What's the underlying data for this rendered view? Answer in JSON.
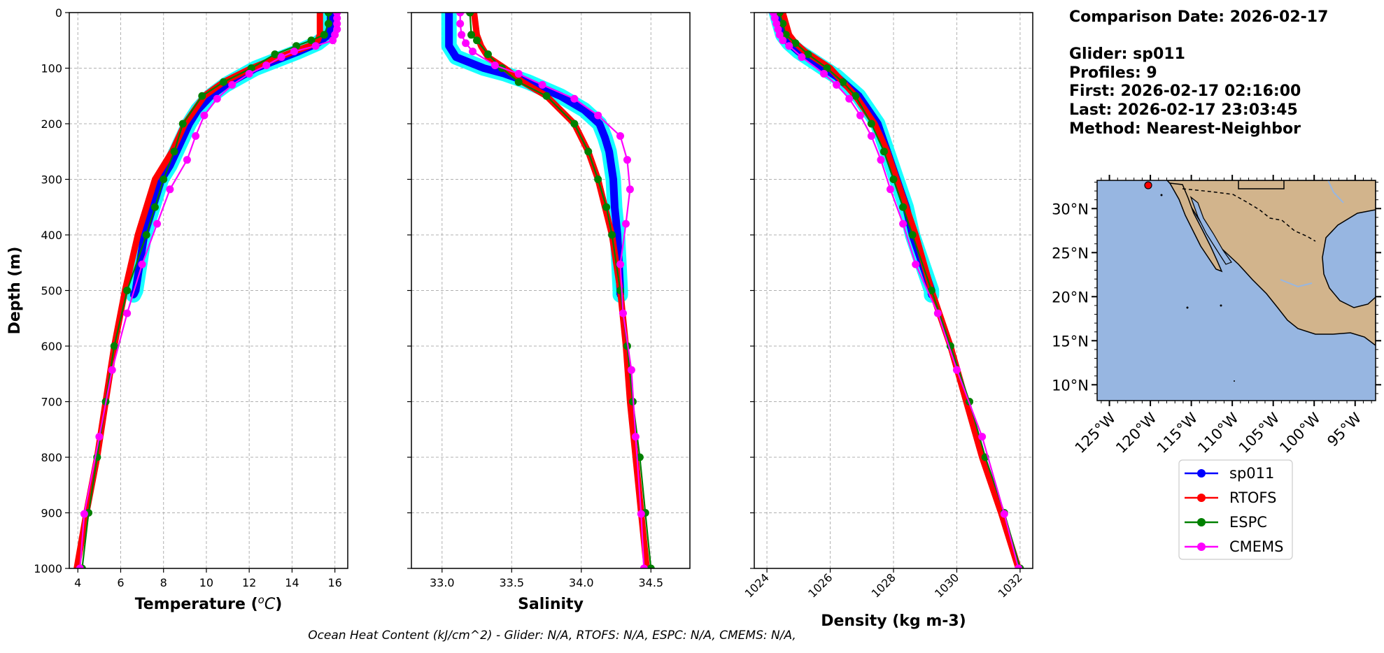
{
  "info": {
    "comparison_date": "Comparison Date: 2026-02-17",
    "glider": "Glider: sp011",
    "profiles": "Profiles: 9",
    "first": "First: 2026-02-17 02:16:00",
    "last": "Last: 2026-02-17 23:03:45",
    "method": "Method: Nearest-Neighbor"
  },
  "footer": "Ocean Heat Content (kJ/cm^2) - Glider: N/A,  RTOFS: N/A,  ESPC: N/A,  CMEMS: N/A,",
  "colors": {
    "sp011": "#0000ff",
    "sp011_spread": "#00ffff",
    "RTOFS": "#ff0000",
    "ESPC": "#008000",
    "CMEMS": "#ff00ff",
    "ocean": "#97b6e1",
    "land": "#d2b48c"
  },
  "legend": [
    "sp011",
    "RTOFS",
    "ESPC",
    "CMEMS"
  ],
  "chart_data": [
    {
      "type": "line",
      "xlabel": "Temperature ($^oC$)",
      "ylabel": "Depth (m)",
      "xlim": [
        3.6,
        16.6
      ],
      "ylim": [
        1000,
        0
      ],
      "xticks": [
        4,
        6,
        8,
        10,
        12,
        14,
        16
      ],
      "yticks": [
        0,
        100,
        200,
        300,
        400,
        500,
        600,
        700,
        800,
        900,
        1000
      ],
      "grid": true,
      "series": [
        {
          "name": "sp011",
          "depth": [
            0,
            20,
            40,
            55,
            70,
            85,
            100,
            115,
            130,
            150,
            175,
            200,
            225,
            250,
            275,
            300,
            350,
            400,
            450,
            500,
            508
          ],
          "values": [
            15.8,
            15.8,
            15.7,
            15.2,
            14.3,
            13.3,
            12.3,
            11.6,
            10.9,
            10.2,
            9.6,
            9.2,
            8.9,
            8.6,
            8.3,
            7.9,
            7.5,
            7.1,
            6.9,
            6.7,
            6.6
          ]
        },
        {
          "name": "RTOFS",
          "depth": [
            0,
            20,
            40,
            50,
            60,
            80,
            100,
            125,
            150,
            200,
            250,
            300,
            400,
            500,
            600,
            700,
            800,
            900,
            1000
          ],
          "values": [
            15.3,
            15.3,
            15.3,
            15.2,
            14.8,
            13.4,
            12.1,
            10.8,
            9.9,
            9.0,
            8.4,
            7.6,
            6.8,
            6.2,
            5.7,
            5.3,
            4.9,
            4.4,
            3.95
          ]
        },
        {
          "name": "ESPC",
          "depth": [
            0,
            20,
            40,
            50,
            60,
            75,
            100,
            125,
            150,
            200,
            250,
            300,
            350,
            400,
            500,
            600,
            700,
            800,
            900,
            1000
          ],
          "values": [
            15.7,
            15.7,
            15.5,
            14.9,
            14.2,
            13.2,
            12.1,
            10.8,
            9.8,
            8.9,
            8.5,
            8.0,
            7.6,
            7.2,
            6.3,
            5.7,
            5.3,
            4.9,
            4.5,
            4.2
          ]
        },
        {
          "name": "CMEMS",
          "depth": [
            0,
            10,
            20,
            30,
            40,
            50,
            60,
            70,
            80,
            95,
            110,
            130,
            155,
            185,
            222,
            265,
            318,
            380,
            453,
            541,
            643,
            763,
            902,
            1000
          ],
          "values": [
            16.1,
            16.1,
            16.1,
            16.1,
            16.0,
            15.9,
            15.1,
            14.1,
            13.5,
            12.8,
            12.0,
            11.2,
            10.5,
            9.9,
            9.5,
            9.1,
            8.3,
            7.7,
            7.0,
            6.3,
            5.6,
            5.0,
            4.3,
            4.1
          ]
        }
      ]
    },
    {
      "type": "line",
      "xlabel": "Salinity",
      "xlim": [
        32.78,
        34.78
      ],
      "ylim": [
        1000,
        0
      ],
      "xticks": [
        33.0,
        33.5,
        34.0,
        34.5
      ],
      "yticks": [
        0,
        100,
        200,
        300,
        400,
        500,
        600,
        700,
        800,
        900,
        1000
      ],
      "grid": true,
      "series": [
        {
          "name": "sp011",
          "depth": [
            0,
            30,
            60,
            80,
            100,
            110,
            125,
            150,
            175,
            200,
            225,
            250,
            300,
            350,
            400,
            450,
            500,
            508
          ],
          "values": [
            33.05,
            33.05,
            33.05,
            33.1,
            33.3,
            33.45,
            33.62,
            33.85,
            34.02,
            34.13,
            34.17,
            34.2,
            34.23,
            34.24,
            34.26,
            34.27,
            34.28,
            34.28
          ]
        },
        {
          "name": "RTOFS",
          "depth": [
            0,
            40,
            60,
            80,
            100,
            125,
            150,
            200,
            250,
            300,
            400,
            500,
            600,
            700,
            800,
            900,
            1000
          ],
          "values": [
            33.23,
            33.25,
            33.28,
            33.33,
            33.45,
            33.58,
            33.75,
            33.95,
            34.05,
            34.12,
            34.22,
            34.28,
            34.32,
            34.35,
            34.39,
            34.43,
            34.47
          ]
        },
        {
          "name": "ESPC",
          "depth": [
            0,
            40,
            50,
            75,
            100,
            125,
            150,
            200,
            250,
            300,
            350,
            400,
            500,
            600,
            700,
            800,
            900,
            1000
          ],
          "values": [
            33.2,
            33.21,
            33.25,
            33.33,
            33.43,
            33.55,
            33.75,
            33.95,
            34.05,
            34.12,
            34.18,
            34.22,
            34.28,
            34.33,
            34.37,
            34.42,
            34.46,
            34.5
          ]
        },
        {
          "name": "CMEMS",
          "depth": [
            0,
            20,
            40,
            55,
            70,
            95,
            110,
            130,
            155,
            185,
            222,
            265,
            318,
            380,
            453,
            541,
            643,
            763,
            902,
            1000
          ],
          "values": [
            33.13,
            33.13,
            33.14,
            33.17,
            33.22,
            33.38,
            33.55,
            33.72,
            33.95,
            34.12,
            34.28,
            34.33,
            34.35,
            34.32,
            34.28,
            34.3,
            34.36,
            34.39,
            34.43,
            34.45
          ]
        }
      ]
    },
    {
      "type": "line",
      "xlabel": "Density (kg m-3)",
      "xlim": [
        1023.6,
        1032.4
      ],
      "ylim": [
        1000,
        0
      ],
      "xticks": [
        1024,
        1026,
        1028,
        1030,
        1032
      ],
      "yticks": [
        0,
        100,
        200,
        300,
        400,
        500,
        600,
        700,
        800,
        900,
        1000
      ],
      "grid": true,
      "series": [
        {
          "name": "sp011",
          "depth": [
            0,
            20,
            40,
            55,
            70,
            85,
            100,
            115,
            130,
            150,
            175,
            200,
            250,
            300,
            350,
            400,
            450,
            500,
            508
          ],
          "values": [
            1024.3,
            1024.4,
            1024.5,
            1024.7,
            1025.0,
            1025.4,
            1025.8,
            1026.2,
            1026.5,
            1026.9,
            1027.2,
            1027.5,
            1027.8,
            1028.1,
            1028.4,
            1028.6,
            1028.9,
            1029.2,
            1029.2
          ]
        },
        {
          "name": "RTOFS",
          "depth": [
            0,
            20,
            40,
            55,
            70,
            85,
            100,
            125,
            150,
            200,
            250,
            300,
            400,
            500,
            600,
            700,
            800,
            900,
            1000
          ],
          "values": [
            1024.5,
            1024.6,
            1024.7,
            1024.9,
            1025.2,
            1025.6,
            1026.0,
            1026.4,
            1026.8,
            1027.4,
            1027.8,
            1028.1,
            1028.7,
            1029.2,
            1029.8,
            1030.3,
            1030.8,
            1031.4,
            1031.95
          ]
        },
        {
          "name": "ESPC",
          "depth": [
            0,
            20,
            40,
            55,
            75,
            100,
            125,
            150,
            200,
            250,
            300,
            350,
            400,
            500,
            600,
            700,
            800,
            900,
            1000
          ],
          "values": [
            1024.4,
            1024.5,
            1024.6,
            1024.9,
            1025.3,
            1025.9,
            1026.4,
            1026.8,
            1027.3,
            1027.7,
            1028.0,
            1028.3,
            1028.6,
            1029.2,
            1029.8,
            1030.4,
            1030.9,
            1031.5,
            1032.0
          ]
        },
        {
          "name": "CMEMS",
          "depth": [
            0,
            10,
            20,
            30,
            40,
            50,
            60,
            80,
            110,
            130,
            155,
            185,
            222,
            265,
            318,
            380,
            453,
            541,
            643,
            763,
            902,
            1000
          ],
          "values": [
            1024.2,
            1024.25,
            1024.3,
            1024.35,
            1024.4,
            1024.5,
            1024.7,
            1025.1,
            1025.8,
            1026.2,
            1026.6,
            1026.95,
            1027.3,
            1027.6,
            1027.9,
            1028.3,
            1028.7,
            1029.4,
            1030.0,
            1030.8,
            1031.5,
            1031.95
          ]
        }
      ]
    }
  ],
  "map": {
    "xticks": [
      "125°W",
      "120°W",
      "115°W",
      "110°W",
      "105°W",
      "100°W",
      "95°W"
    ],
    "yticks": [
      "30°N",
      "25°N",
      "20°N",
      "15°N",
      "10°N"
    ],
    "lon_range": [
      -126.5,
      -92.5
    ],
    "lat_range": [
      8.2,
      33.2
    ],
    "glider_position": {
      "lon": -120.6,
      "lat": 32.6
    }
  }
}
